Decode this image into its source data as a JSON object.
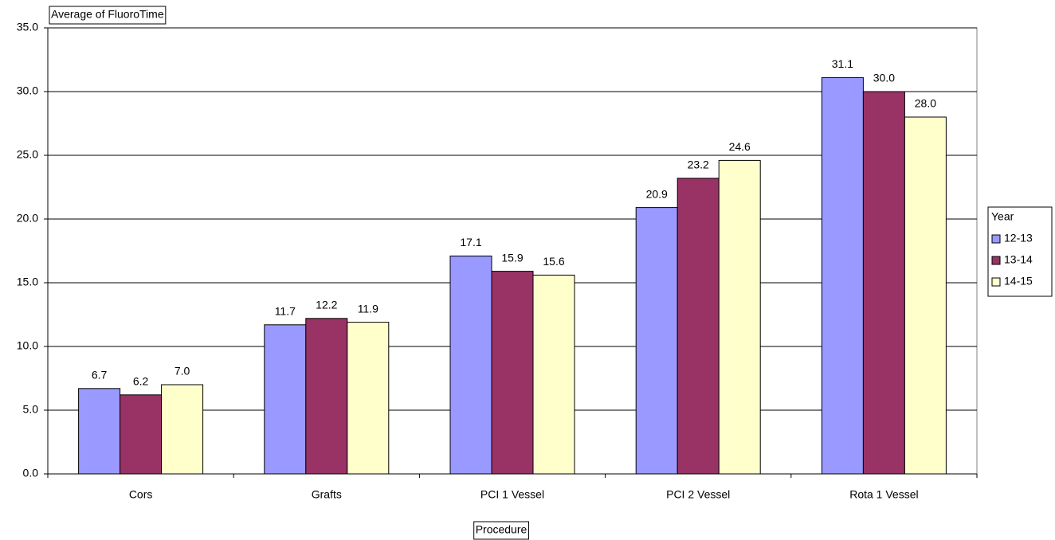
{
  "chart_data": {
    "type": "bar",
    "y_label": "Average of FluoroTime",
    "x_label": "Procedure",
    "legend_title": "Year",
    "legend_position": "right",
    "grid": true,
    "categories": [
      "Cors",
      "Grafts",
      "PCI 1 Vessel",
      "PCI 2 Vessel",
      "Rota 1 Vessel"
    ],
    "series": [
      {
        "name": "12-13",
        "color": "#9999ff",
        "values": [
          6.7,
          11.7,
          17.1,
          20.9,
          31.1
        ],
        "value_labels": [
          "6.7",
          "11.7",
          "17.1",
          "20.9",
          "31.1"
        ]
      },
      {
        "name": "13-14",
        "color": "#993366",
        "values": [
          6.2,
          12.2,
          15.9,
          23.2,
          30.0
        ],
        "value_labels": [
          "6.2",
          "12.2",
          "15.9",
          "23.2",
          "30.0"
        ]
      },
      {
        "name": "14-15",
        "color": "#ffffcc",
        "values": [
          7.0,
          11.9,
          15.6,
          24.6,
          28.0
        ],
        "value_labels": [
          "7.0",
          "11.9",
          "15.6",
          "24.6",
          "28.0"
        ]
      }
    ],
    "ylim": [
      0,
      35
    ],
    "yticks": [
      {
        "value": 0,
        "label": "0.0"
      },
      {
        "value": 5,
        "label": "5.0"
      },
      {
        "value": 10,
        "label": "10.0"
      },
      {
        "value": 15,
        "label": "15.0"
      },
      {
        "value": 20,
        "label": "20.0"
      },
      {
        "value": 25,
        "label": "25.0"
      },
      {
        "value": 30,
        "label": "30.0"
      },
      {
        "value": 35,
        "label": "35.0"
      }
    ]
  }
}
